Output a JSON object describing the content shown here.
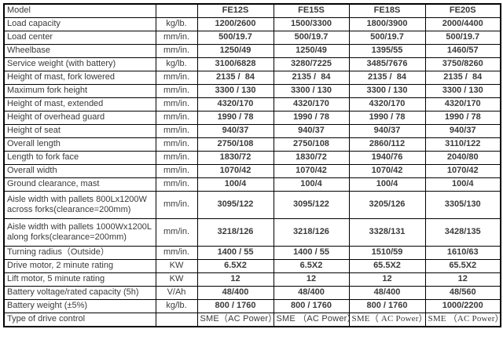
{
  "accent_red": "#ff0000",
  "text_color": "#3a3a3a",
  "border_color": "#000000",
  "table": {
    "header": {
      "label": "Model",
      "unit": "",
      "models": [
        "FE12S",
        "FE15S",
        "FE18S",
        "FE20S"
      ]
    },
    "rows": [
      {
        "label": "Load capacity",
        "unit": "kg/lb.",
        "values": [
          "1200/2600",
          "1500/3300",
          "1800/3900",
          "2000/4400"
        ]
      },
      {
        "label": "Load center",
        "unit": "mm/in.",
        "values": [
          "500/19.7",
          "500/19.7",
          "500/19.7",
          "500/19.7"
        ]
      },
      {
        "label": "Wheelbase",
        "unit": "mm/in.",
        "values": [
          "1250/49",
          "1250/49",
          "1395/55",
          "1460/57"
        ]
      },
      {
        "label": "Service weight (with battery)",
        "unit": "kg/lb.",
        "values": [
          "3100/6828",
          "3280/7225",
          "3485/7676",
          "3750/8260"
        ]
      },
      {
        "label": "Height of mast, fork lowered",
        "unit": "mm/in.",
        "values": [
          "2135 /  84",
          "2135 /  84",
          "2135 /  84",
          "2135 /  84"
        ]
      },
      {
        "label": "Maximum fork height",
        "unit": "mm/in.",
        "values": [
          "3300 / 130",
          "3300 / 130",
          "3300 / 130",
          "3300 / 130"
        ]
      },
      {
        "label": "Height of mast, extended",
        "unit": "mm/in.",
        "values": [
          "4320/170",
          "4320/170",
          "4320/170",
          "4320/170"
        ]
      },
      {
        "label": "Height of overhead guard",
        "unit": "mm/in.",
        "values": [
          "1990 / 78",
          "1990 / 78",
          "1990 / 78",
          "1990 / 78"
        ]
      },
      {
        "label": "Height of seat",
        "unit": "mm/in.",
        "values": [
          "940/37",
          "940/37",
          "940/37",
          "940/37"
        ]
      },
      {
        "label": "Overall length",
        "unit": "mm/in.",
        "values": [
          "2750/108",
          "2750/108",
          "2860/112",
          "3110/122"
        ]
      },
      {
        "label": "Length to fork face",
        "unit": "mm/in.",
        "values": [
          "1830/72",
          "1830/72",
          "1940/76",
          "2040/80"
        ]
      },
      {
        "label": "Overall width",
        "unit": "mm/in.",
        "values": [
          "1070/42",
          "1070/42",
          "1070/42",
          "1070/42"
        ]
      },
      {
        "label": "Ground clearance,  mast",
        "unit": "mm/in.",
        "values": [
          "100/4",
          "100/4",
          "100/4",
          "100/4"
        ]
      },
      {
        "label": "Aisle width with pallets 800Lx1200W across forks(clearance=200mm)",
        "unit": "mm/in.",
        "values": [
          "3095/122",
          "3095/122",
          "3205/126",
          "3305/130"
        ],
        "tall": true
      },
      {
        "label": "Aisle width with pallets 1000Wx1200L along forks(clearance=200mm)",
        "unit": "mm/in.",
        "values": [
          "3218/126",
          "3218/126",
          "3328/131",
          "3428/135"
        ],
        "tall": true
      },
      {
        "label": "Turning radius（Outside）",
        "unit": "mm/in.",
        "values": [
          "1400 / 55",
          "1400 / 55",
          "1510/59",
          "1610/63"
        ]
      },
      {
        "label": "Drive motor, 2 minute rating",
        "unit": "KW",
        "values": [
          "6.5X2",
          "6.5X2",
          "65.5X2",
          "65.5X2"
        ]
      },
      {
        "label": "Lift motor, 5 minute rating",
        "unit": "KW",
        "values": [
          "12",
          "12",
          "12",
          "12"
        ]
      },
      {
        "label": "Battery voltage/rated capacity (5h)",
        "unit": "V/Ah",
        "values": [
          "48/400",
          "48/400",
          "48/400",
          "48/560"
        ]
      },
      {
        "label": "Battery weight (±5%)",
        "unit": "kg/lb.",
        "values": [
          "800 / 1760",
          "800 / 1760",
          "800 / 1760",
          "1000/2200"
        ]
      },
      {
        "label": "Type of drive control",
        "unit": "",
        "values": [
          "SME（AC Power）",
          "SME （AC Power）",
          "SME（ AC Power）",
          "SME （AC Power）"
        ],
        "drive": true
      }
    ]
  }
}
